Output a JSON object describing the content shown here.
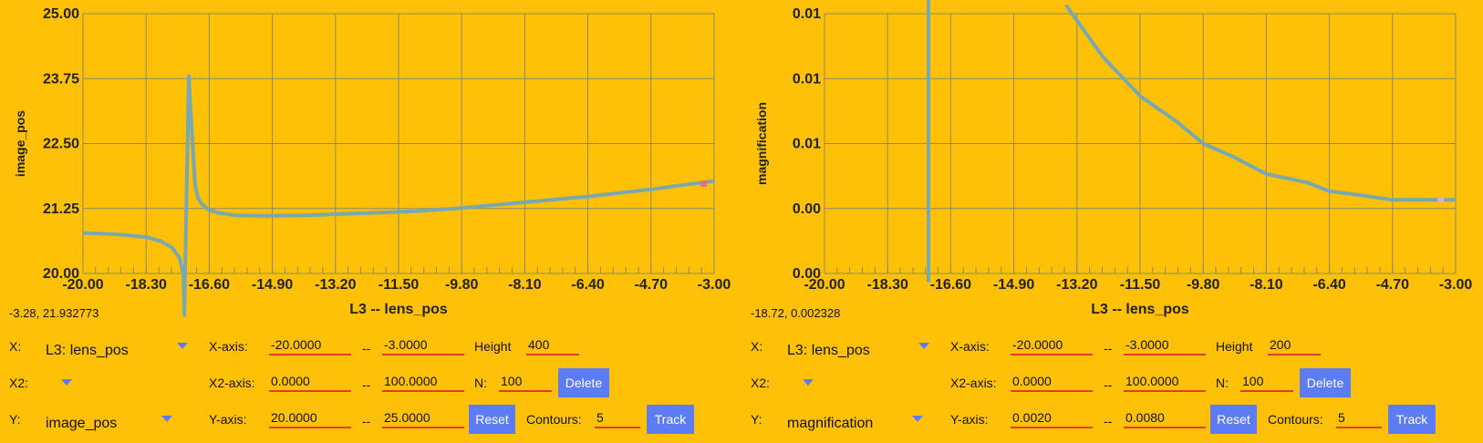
{
  "chart_data": [
    {
      "type": "line",
      "xlabel": "L3 -- lens_pos",
      "ylabel": "image_pos",
      "xlim": [
        -20,
        -3
      ],
      "ylim": [
        20,
        25
      ],
      "x_ticks": [
        "-20.00",
        "-18.30",
        "-16.60",
        "-14.90",
        "-13.20",
        "-11.50",
        "-9.80",
        "-8.10",
        "-6.40",
        "-4.70",
        "-3.00"
      ],
      "y_ticks": [
        "20.00",
        "21.25",
        "22.50",
        "23.75",
        "25.00"
      ],
      "grid": true,
      "series": [
        {
          "x": [
            -20,
            -19,
            -18.3,
            -17.9,
            -17.6,
            -17.4,
            -17.3,
            -17.27,
            -17.15,
            -17.05,
            -16.98,
            -16.9,
            -16.8,
            -16.6,
            -16.3,
            -15.9,
            -15.3,
            -14.9,
            -14.0,
            -13.2,
            -12.0,
            -11.0,
            -9.8,
            -8.1,
            -6.4,
            -4.7,
            -3.0
          ],
          "y": [
            20.78,
            20.75,
            20.7,
            20.62,
            20.5,
            20.3,
            20.0,
            19.2,
            23.8,
            22.5,
            21.7,
            21.45,
            21.33,
            21.22,
            21.16,
            21.12,
            21.11,
            21.11,
            21.12,
            21.14,
            21.17,
            21.2,
            21.26,
            21.37,
            21.48,
            21.62,
            21.78
          ]
        }
      ],
      "marker": {
        "x": -3.28,
        "y": 21.73
      },
      "marker_color": "#e57373",
      "line_color": "#78a8b0"
    },
    {
      "type": "line",
      "xlabel": "L3 -- lens_pos",
      "ylabel": "magnification",
      "xlim": [
        -20,
        -3
      ],
      "ylim": [
        0.002,
        0.008
      ],
      "x_ticks": [
        "-20.00",
        "-18.30",
        "-16.60",
        "-14.90",
        "-13.20",
        "-11.50",
        "-9.80",
        "-8.10",
        "-6.40",
        "-4.70",
        "-3.00"
      ],
      "y_ticks": [
        "0.00",
        "0.00",
        "0.01",
        "0.01",
        "0.01"
      ],
      "grid": true,
      "series": [
        {
          "x": [
            -17.2,
            -17.2
          ],
          "y": [
            0.0018,
            0.0085
          ]
        },
        {
          "x": [
            -13.5,
            -12.5,
            -11.5,
            -10.5,
            -9.8,
            -9.0,
            -8.1,
            -7.0,
            -6.4,
            -5.5,
            -4.7,
            -3.0
          ],
          "y": [
            0.0082,
            0.007,
            0.0061,
            0.0055,
            0.005,
            0.0047,
            0.0043,
            0.0041,
            0.0039,
            0.0038,
            0.0037,
            0.0037
          ]
        }
      ],
      "marker": {
        "x": -3.4,
        "y": 0.0037
      },
      "marker_color": "#e0b0a0",
      "line_color": "#78a8b0"
    }
  ],
  "left": {
    "readout": "-3.28, 21.932773",
    "x_label": "X:",
    "x_select": "L3: lens_pos",
    "x2_label": "X2:",
    "y_label": "Y:",
    "y_select": "image_pos",
    "xaxis_label": "X-axis:",
    "xaxis_min": "-20.0000",
    "xaxis_max": "-3.0000",
    "x2axis_label": "X2-axis:",
    "x2axis_min": "0.0000",
    "x2axis_max": "100.0000",
    "yaxis_label": "Y-axis:",
    "yaxis_min": "20.0000",
    "yaxis_max": "25.0000",
    "sep": "--",
    "height_label": "Height",
    "height_value": "400",
    "n_label": "N:",
    "n_value": "100",
    "contours_label": "Contours:",
    "contours_value": "5",
    "delete_label": "Delete",
    "reset_label": "Reset",
    "track_label": "Track"
  },
  "right": {
    "readout": "-18.72, 0.002328",
    "x_label": "X:",
    "x_select": "L3: lens_pos",
    "x2_label": "X2:",
    "y_label": "Y:",
    "y_select": "magnification",
    "xaxis_label": "X-axis:",
    "xaxis_min": "-20.0000",
    "xaxis_max": "-3.0000",
    "x2axis_label": "X2-axis:",
    "x2axis_min": "0.0000",
    "x2axis_max": "100.0000",
    "yaxis_label": "Y-axis:",
    "yaxis_min": "0.0020",
    "yaxis_max": "0.0080",
    "sep": "--",
    "height_label": "Height",
    "height_value": "200",
    "n_label": "N:",
    "n_value": "100",
    "contours_label": "Contours:",
    "contours_value": "5",
    "delete_label": "Delete",
    "reset_label": "Reset",
    "track_label": "Track"
  },
  "colors": {
    "background": "#ffc107",
    "grid": "#8a8a6a",
    "button": "#5b7cf5",
    "field_underline": "#e53935"
  }
}
